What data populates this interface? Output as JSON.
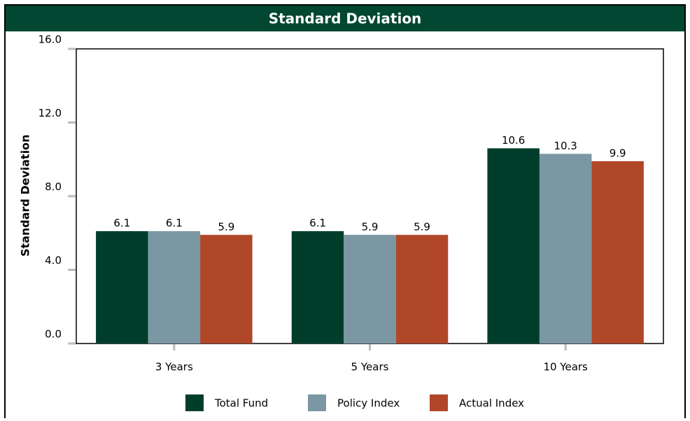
{
  "chart_data": {
    "type": "bar",
    "title": "Standard Deviation",
    "y_label": "Standard Deviation",
    "categories": [
      "3 Years",
      "5 Years",
      "10 Years"
    ],
    "series": [
      {
        "name": "Total Fund",
        "color": "#003d2b",
        "values": [
          6.1,
          6.1,
          10.6
        ]
      },
      {
        "name": "Policy Index",
        "color": "#7a97a3",
        "values": [
          6.1,
          5.9,
          10.3
        ]
      },
      {
        "name": "Actual Index",
        "color": "#b04728",
        "values": [
          5.9,
          5.9,
          9.9
        ]
      }
    ],
    "ylim": [
      0,
      16
    ],
    "yticks": [
      {
        "value": 0,
        "label": "0.0"
      },
      {
        "value": 4,
        "label": "4.0"
      },
      {
        "value": 8,
        "label": "8.0"
      },
      {
        "value": 12,
        "label": "12.0"
      },
      {
        "value": 16,
        "label": "16.0"
      }
    ],
    "legend": "bottom"
  }
}
